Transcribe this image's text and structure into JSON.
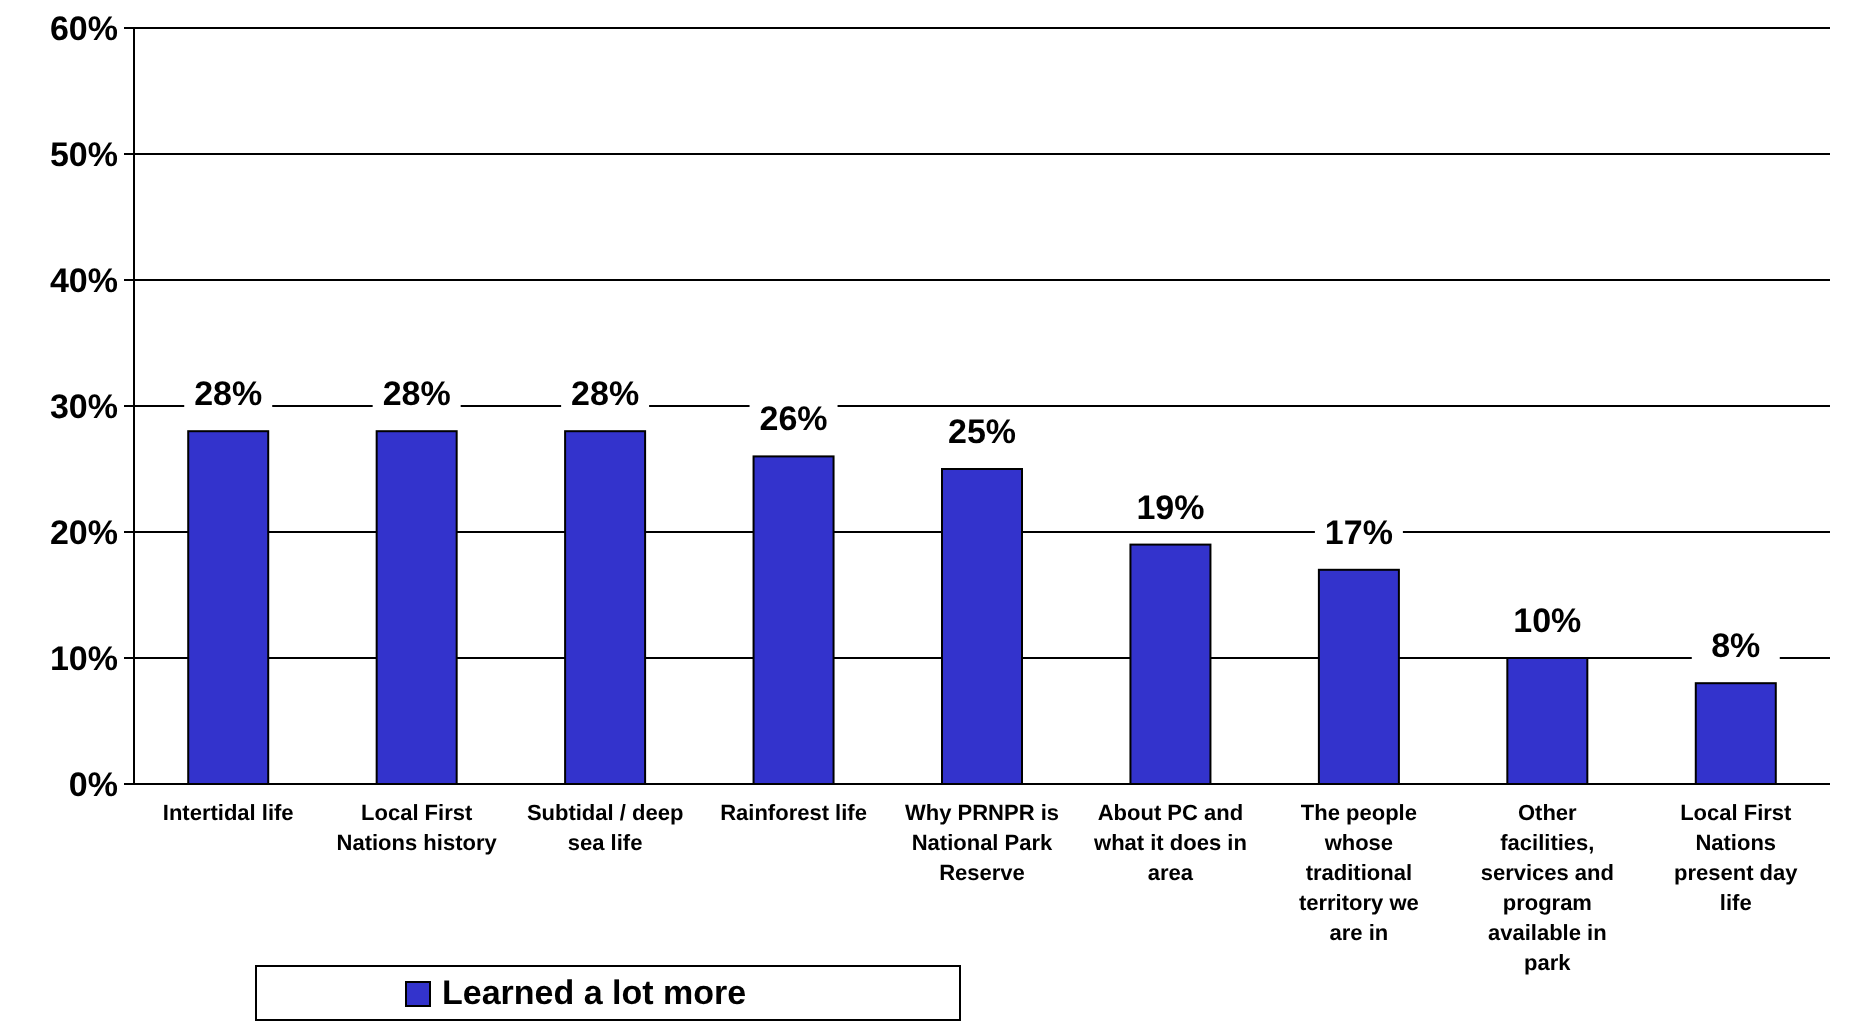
{
  "chart_data": {
    "type": "bar",
    "categories": [
      "Intertidal life",
      "Local First\nNations history",
      "Subtidal / deep\nsea life",
      "Rainforest life",
      "Why PRNPR is\nNational Park\nReserve",
      "About PC and\nwhat it does in\narea",
      "The people\nwhose\ntraditional\nterritory we\nare in",
      "Other\nfacilities,\nservices and\nprogram\navailable in\npark",
      "Local First\nNations\npresent day\nlife"
    ],
    "series": [
      {
        "name": "Learned a lot more",
        "color": "#3333cc",
        "values": [
          28,
          28,
          28,
          26,
          25,
          19,
          17,
          10,
          8
        ]
      }
    ],
    "value_labels": [
      "28%",
      "28%",
      "28%",
      "26%",
      "25%",
      "19%",
      "17%",
      "10%",
      "8%"
    ],
    "ylim": [
      0,
      60
    ],
    "yticks": [
      {
        "value": 0,
        "label": "0%"
      },
      {
        "value": 10,
        "label": "10%"
      },
      {
        "value": 20,
        "label": "20%"
      },
      {
        "value": 30,
        "label": "30%"
      },
      {
        "value": 40,
        "label": "40%"
      },
      {
        "value": 50,
        "label": "50%"
      },
      {
        "value": 60,
        "label": "60%"
      }
    ],
    "grid": "y",
    "legend": "bottom left"
  }
}
